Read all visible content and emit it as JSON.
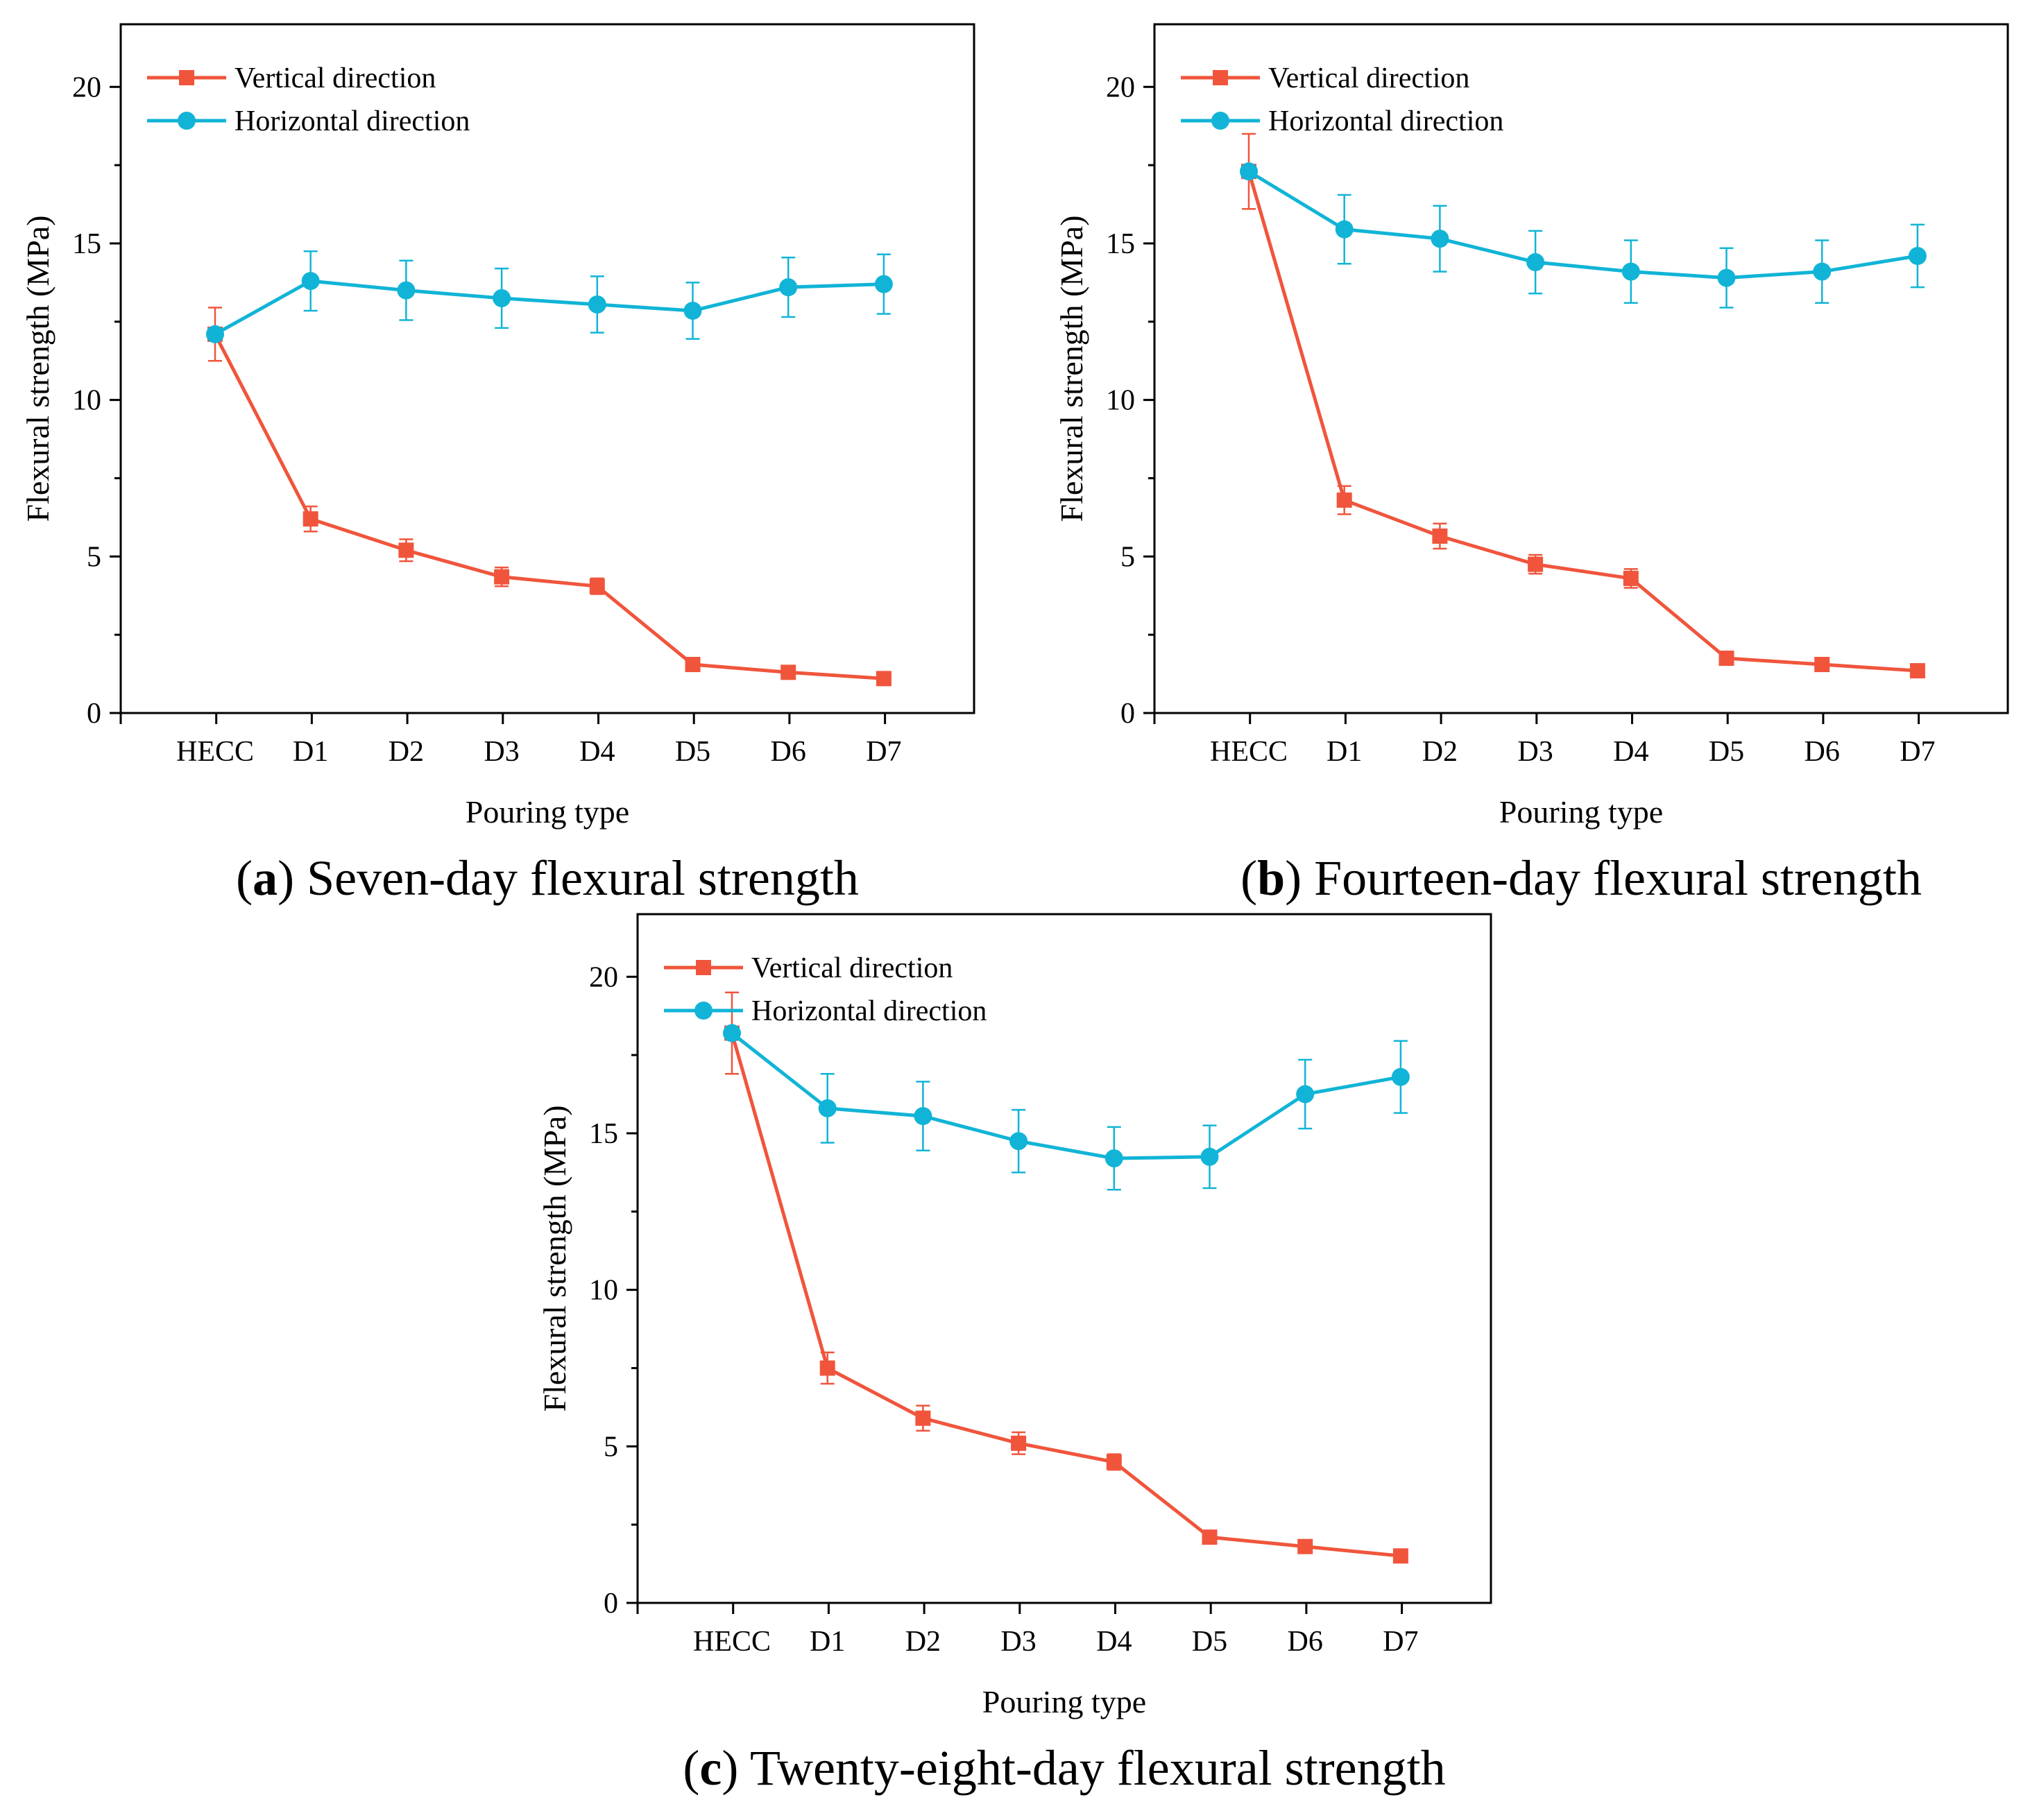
{
  "colors": {
    "vertical": "#F0553C",
    "horizontal": "#11B4D6",
    "axis": "#000000"
  },
  "chart_data": [
    {
      "type": "line",
      "caption_letter": "a",
      "caption_text": " Seven-day flexural strength",
      "xlabel": "Pouring type",
      "ylabel": "Flexural strength (MPa)",
      "ylim": [
        0,
        22
      ],
      "yticks": [
        0,
        5,
        10,
        15,
        20
      ],
      "categories": [
        "HECC",
        "D1",
        "D2",
        "D3",
        "D4",
        "D5",
        "D6",
        "D7"
      ],
      "series": [
        {
          "name": "Vertical direction",
          "marker": "square",
          "color_key": "vertical",
          "values": [
            12.1,
            6.2,
            5.2,
            4.35,
            4.05,
            1.55,
            1.3,
            1.1
          ],
          "errors": [
            0.85,
            0.4,
            0.35,
            0.3,
            0.25,
            0.12,
            0.1,
            0.1
          ]
        },
        {
          "name": "Horizontal direction",
          "marker": "circle",
          "color_key": "horizontal",
          "values": [
            12.1,
            13.8,
            13.5,
            13.25,
            13.05,
            12.85,
            13.6,
            13.7
          ],
          "errors": [
            0,
            0.95,
            0.95,
            0.95,
            0.9,
            0.9,
            0.95,
            0.95
          ]
        }
      ]
    },
    {
      "type": "line",
      "caption_letter": "b",
      "caption_text": " Fourteen-day flexural strength",
      "xlabel": "Pouring type",
      "ylabel": "Flexural strength (MPa)",
      "ylim": [
        0,
        22
      ],
      "yticks": [
        0,
        5,
        10,
        15,
        20
      ],
      "categories": [
        "HECC",
        "D1",
        "D2",
        "D3",
        "D4",
        "D5",
        "D6",
        "D7"
      ],
      "series": [
        {
          "name": "Vertical direction",
          "marker": "square",
          "color_key": "vertical",
          "values": [
            17.3,
            6.8,
            5.65,
            4.75,
            4.3,
            1.75,
            1.55,
            1.35
          ],
          "errors": [
            1.2,
            0.45,
            0.4,
            0.3,
            0.3,
            0.1,
            0.1,
            0.1
          ]
        },
        {
          "name": "Horizontal direction",
          "marker": "circle",
          "color_key": "horizontal",
          "values": [
            17.3,
            15.45,
            15.15,
            14.4,
            14.1,
            13.9,
            14.1,
            14.6
          ],
          "errors": [
            0,
            1.1,
            1.05,
            1.0,
            1.0,
            0.95,
            1.0,
            1.0
          ]
        }
      ]
    },
    {
      "type": "line",
      "caption_letter": "c",
      "caption_text": " Twenty-eight-day flexural strength",
      "xlabel": "Pouring type",
      "ylabel": "Flexural strength (MPa)",
      "ylim": [
        0,
        22
      ],
      "yticks": [
        0,
        5,
        10,
        15,
        20
      ],
      "categories": [
        "HECC",
        "D1",
        "D2",
        "D3",
        "D4",
        "D5",
        "D6",
        "D7"
      ],
      "series": [
        {
          "name": "Vertical direction",
          "marker": "square",
          "color_key": "vertical",
          "values": [
            18.2,
            7.5,
            5.9,
            5.1,
            4.5,
            2.1,
            1.8,
            1.5
          ],
          "errors": [
            1.3,
            0.5,
            0.4,
            0.35,
            0.25,
            0.1,
            0.1,
            0.1
          ]
        },
        {
          "name": "Horizontal direction",
          "marker": "circle",
          "color_key": "horizontal",
          "values": [
            18.2,
            15.8,
            15.55,
            14.75,
            14.2,
            14.25,
            16.25,
            16.8
          ],
          "errors": [
            0,
            1.1,
            1.1,
            1.0,
            1.0,
            1.0,
            1.1,
            1.15
          ]
        }
      ]
    }
  ]
}
